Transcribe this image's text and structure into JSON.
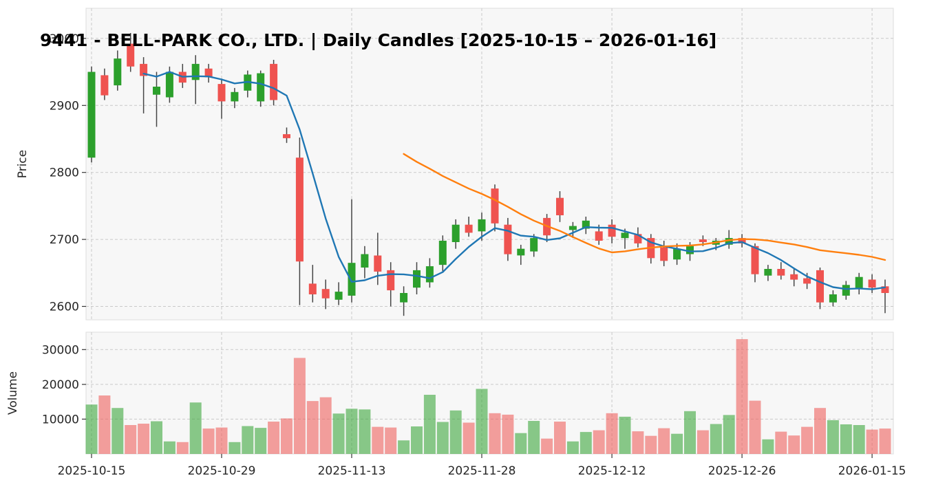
{
  "colors": {
    "up": "#2ca02c",
    "down": "#ef5350",
    "wick": "#444444",
    "grid": "#c9c9c9",
    "panel_bg": "#f7f7f7",
    "panel_border": "#dddddd",
    "text": "#262626"
  },
  "chart_data": {
    "type": "candlestick",
    "title": "9441 - BELL-PARK CO., LTD. | Daily Candles [2025-10-15 – 2026-01-16]",
    "ylabel_price": "Price",
    "ylabel_volume": "Volume",
    "grid": true,
    "legend": "none",
    "price_ticks": [
      2600,
      2700,
      2800,
      2900,
      3000
    ],
    "volume_ticks": [
      10000,
      20000,
      30000
    ],
    "price_range": [
      2580,
      3045
    ],
    "volume_range": [
      0,
      35000
    ],
    "x_ticks": [
      {
        "index": 0,
        "label": "2025-10-15"
      },
      {
        "index": 10,
        "label": "2025-10-29"
      },
      {
        "index": 20,
        "label": "2025-11-13"
      },
      {
        "index": 30,
        "label": "2025-11-28"
      },
      {
        "index": 40,
        "label": "2025-12-12"
      },
      {
        "index": 50,
        "label": "2025-12-26"
      },
      {
        "index": 60,
        "label": "2026-01-15"
      }
    ],
    "ma_short": {
      "period": 5,
      "color": "#1f77b4"
    },
    "ma_long": {
      "period": 25,
      "color": "#ff7f0e"
    },
    "columns": [
      "date",
      "open",
      "high",
      "low",
      "close",
      "volume"
    ],
    "candles": [
      [
        "2025-10-15",
        2822,
        2958,
        2815,
        2950,
        14200
      ],
      [
        "2025-10-16",
        2945,
        2955,
        2908,
        2915,
        16800
      ],
      [
        "2025-10-17",
        2930,
        2982,
        2922,
        2970,
        13200
      ],
      [
        "2025-10-20",
        2992,
        3008,
        2950,
        2958,
        8300
      ],
      [
        "2025-10-21",
        2962,
        2972,
        2888,
        2944,
        8700
      ],
      [
        "2025-10-22",
        2916,
        2950,
        2868,
        2928,
        9400
      ],
      [
        "2025-10-23",
        2912,
        2958,
        2904,
        2950,
        3600
      ],
      [
        "2025-10-24",
        2950,
        2962,
        2926,
        2934,
        3400
      ],
      [
        "2025-10-27",
        2938,
        2975,
        2902,
        2962,
        14800
      ],
      [
        "2025-10-28",
        2955,
        2962,
        2934,
        2942,
        7300
      ],
      [
        "2025-10-29",
        2932,
        2940,
        2880,
        2906,
        7600
      ],
      [
        "2025-10-30",
        2906,
        2926,
        2896,
        2920,
        3400
      ],
      [
        "2025-10-31",
        2922,
        2952,
        2912,
        2946,
        8000
      ],
      [
        "2025-11-04",
        2906,
        2952,
        2898,
        2948,
        7500
      ],
      [
        "2025-11-05",
        2962,
        2968,
        2900,
        2908,
        9300
      ],
      [
        "2025-11-06",
        2857,
        2867,
        2844,
        2851,
        10200
      ],
      [
        "2025-11-07",
        2822,
        2852,
        2602,
        2667,
        27600
      ],
      [
        "2025-11-10",
        2634,
        2662,
        2606,
        2618,
        15200
      ],
      [
        "2025-11-11",
        2626,
        2640,
        2596,
        2612,
        16300
      ],
      [
        "2025-11-12",
        2610,
        2636,
        2602,
        2622,
        11600
      ],
      [
        "2025-11-13",
        2616,
        2760,
        2606,
        2665,
        13000
      ],
      [
        "2025-11-14",
        2658,
        2690,
        2642,
        2678,
        12800
      ],
      [
        "2025-11-17",
        2676,
        2710,
        2632,
        2652,
        7800
      ],
      [
        "2025-11-18",
        2654,
        2666,
        2600,
        2624,
        7600
      ],
      [
        "2025-11-19",
        2606,
        2630,
        2586,
        2620,
        3900
      ],
      [
        "2025-11-20",
        2628,
        2666,
        2618,
        2654,
        7900
      ],
      [
        "2025-11-21",
        2636,
        2672,
        2628,
        2660,
        17000
      ],
      [
        "2025-11-25",
        2662,
        2706,
        2652,
        2698,
        9200
      ],
      [
        "2025-11-26",
        2696,
        2730,
        2686,
        2722,
        12500
      ],
      [
        "2025-11-27",
        2722,
        2734,
        2704,
        2710,
        9000
      ],
      [
        "2025-11-28",
        2712,
        2740,
        2698,
        2730,
        18700
      ],
      [
        "2025-12-01",
        2776,
        2782,
        2712,
        2724,
        11700
      ],
      [
        "2025-12-02",
        2722,
        2732,
        2668,
        2678,
        11300
      ],
      [
        "2025-12-03",
        2676,
        2692,
        2662,
        2686,
        6000
      ],
      [
        "2025-12-04",
        2682,
        2708,
        2674,
        2702,
        9500
      ],
      [
        "2025-12-05",
        2732,
        2738,
        2696,
        2706,
        4400
      ],
      [
        "2025-12-08",
        2762,
        2772,
        2726,
        2736,
        9300
      ],
      [
        "2025-12-09",
        2714,
        2726,
        2702,
        2720,
        3600
      ],
      [
        "2025-12-10",
        2716,
        2734,
        2708,
        2728,
        6300
      ],
      [
        "2025-12-11",
        2712,
        2722,
        2692,
        2698,
        6800
      ],
      [
        "2025-12-12",
        2722,
        2730,
        2694,
        2704,
        11700
      ],
      [
        "2025-12-15",
        2702,
        2716,
        2686,
        2710,
        10700
      ],
      [
        "2025-12-16",
        2708,
        2718,
        2688,
        2694,
        6500
      ],
      [
        "2025-12-17",
        2702,
        2708,
        2664,
        2672,
        5200
      ],
      [
        "2025-12-18",
        2688,
        2698,
        2660,
        2668,
        7400
      ],
      [
        "2025-12-19",
        2670,
        2694,
        2662,
        2686,
        5800
      ],
      [
        "2025-12-22",
        2678,
        2696,
        2668,
        2690,
        12300
      ],
      [
        "2025-12-23",
        2700,
        2706,
        2690,
        2696,
        6800
      ],
      [
        "2025-12-24",
        2692,
        2702,
        2684,
        2698,
        8600
      ],
      [
        "2025-12-25",
        2692,
        2714,
        2686,
        2702,
        11200
      ],
      [
        "2025-12-26",
        2702,
        2708,
        2688,
        2694,
        33000
      ],
      [
        "2025-12-29",
        2690,
        2694,
        2636,
        2648,
        15300
      ],
      [
        "2025-12-30",
        2646,
        2662,
        2638,
        2656,
        4200
      ],
      [
        "2026-01-05",
        2656,
        2666,
        2640,
        2646,
        6400
      ],
      [
        "2026-01-06",
        2648,
        2656,
        2630,
        2640,
        5300
      ],
      [
        "2026-01-07",
        2642,
        2650,
        2626,
        2634,
        7800
      ],
      [
        "2026-01-08",
        2654,
        2658,
        2596,
        2606,
        13200
      ],
      [
        "2026-01-09",
        2606,
        2624,
        2600,
        2618,
        9700
      ],
      [
        "2026-01-13",
        2616,
        2638,
        2610,
        2632,
        8500
      ],
      [
        "2026-01-14",
        2626,
        2650,
        2618,
        2644,
        8300
      ],
      [
        "2026-01-15",
        2640,
        2648,
        2620,
        2628,
        7000
      ],
      [
        "2026-01-16",
        2630,
        2640,
        2590,
        2620,
        7300
      ]
    ]
  }
}
